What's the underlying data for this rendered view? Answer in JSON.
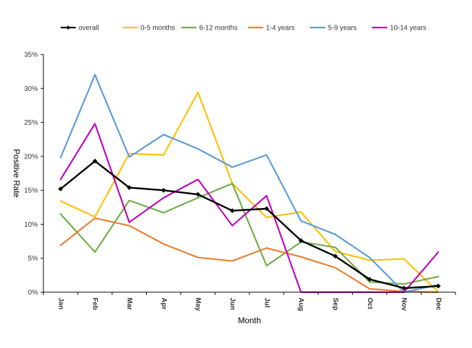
{
  "chart_data": {
    "type": "line",
    "title": "",
    "xlabel": "Month",
    "ylabel": "Positive Rate",
    "ylim": [
      0,
      35
    ],
    "yticks": [
      "0%",
      "5%",
      "10%",
      "15%",
      "20%",
      "25%",
      "30%",
      "35%"
    ],
    "categories": [
      "Jan",
      "Feb",
      "Mar",
      "Apr",
      "May",
      "Jun",
      "Jul",
      "Aug",
      "Sep",
      "Oct",
      "Nov",
      "Dec"
    ],
    "legend_position": "top",
    "series": [
      {
        "name": "overall",
        "color": "#000000",
        "marker": "diamond",
        "values": [
          15.2,
          19.3,
          15.4,
          15.0,
          14.4,
          12.0,
          12.3,
          7.6,
          5.3,
          1.9,
          0.6,
          0.9
        ]
      },
      {
        "name": "0-5 months",
        "color": "#FFC000",
        "marker": "none",
        "values": [
          13.4,
          11.1,
          20.4,
          20.2,
          29.4,
          16.0,
          11.0,
          11.8,
          6.0,
          4.7,
          4.9,
          0.0
        ]
      },
      {
        "name": "6-12 months",
        "color": "#70AD47",
        "marker": "none",
        "values": [
          11.5,
          5.9,
          13.5,
          11.7,
          13.9,
          16.0,
          3.9,
          7.4,
          6.6,
          1.5,
          1.2,
          2.3
        ]
      },
      {
        "name": "1-4 years",
        "color": "#ED7D31",
        "marker": "none",
        "values": [
          6.9,
          10.9,
          9.8,
          7.1,
          5.1,
          4.6,
          6.5,
          5.2,
          3.6,
          0.5,
          0.1,
          0.0
        ]
      },
      {
        "name": "5-9 years",
        "color": "#5B9BD5",
        "marker": "none",
        "values": [
          19.8,
          32.0,
          19.9,
          23.2,
          21.1,
          18.4,
          20.2,
          10.5,
          8.5,
          5.1,
          0.0,
          1.1
        ]
      },
      {
        "name": "10-14 years",
        "color": "#C000C0",
        "marker": "none",
        "values": [
          16.6,
          24.8,
          10.3,
          13.9,
          16.6,
          9.8,
          14.2,
          0.0,
          0.0,
          0.0,
          0.0,
          5.9
        ]
      }
    ]
  }
}
